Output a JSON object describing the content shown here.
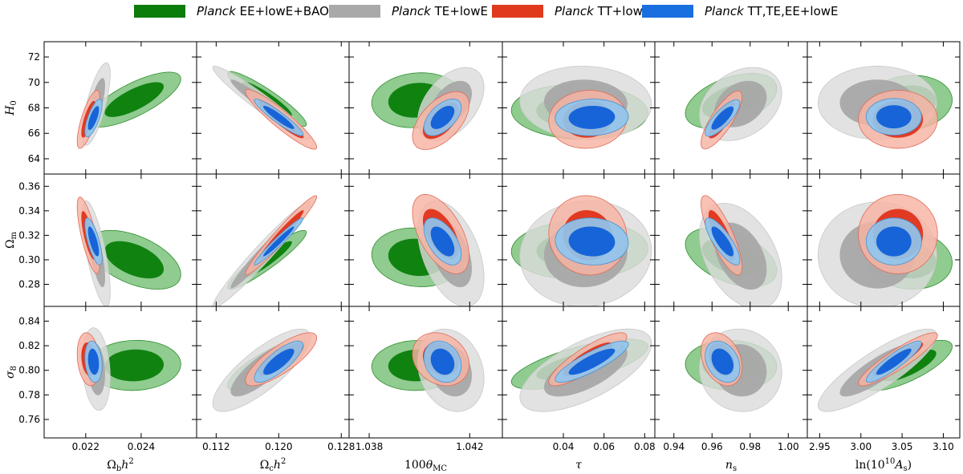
{
  "legend": [
    {
      "prefix": "Planck",
      "text": "EE+lowE+BAO",
      "color": "#0a7d0a"
    },
    {
      "prefix": "Planck",
      "text": "TE+lowE",
      "color": "#a9a9a9"
    },
    {
      "prefix": "Planck",
      "text": "TT+lowE",
      "color": "#e03a1e"
    },
    {
      "prefix": "Planck",
      "text": "TT,TE,EE+lowE",
      "color": "#1a6fe0"
    }
  ],
  "chart_data": {
    "type": "scatter",
    "title": "",
    "description_series": [
      "EE+lowE+BAO",
      "TE+lowE",
      "TT+lowE",
      "TT,TE,EE+lowE"
    ],
    "series_colors": {
      "ee": {
        "inner": "#0a7d0a",
        "outer": "#78bf78",
        "edge": "#2f8f2f"
      },
      "te": {
        "inner": "#a8a8a8",
        "outer": "#dcdcdc",
        "edge": "#c8c8c8"
      },
      "tt": {
        "inner": "#e0331a",
        "outer": "#f6b3a4",
        "edge": "#e06a55"
      },
      "all": {
        "inner": "#1664d8",
        "outer": "#8fc6ee",
        "edge": "#4a90d0"
      }
    },
    "columns": [
      {
        "label": "Ωbh²",
        "range": [
          0.0205,
          0.026
        ],
        "ticks": [
          "0.022",
          "0.024"
        ],
        "tick_values": [
          0.022,
          0.024
        ]
      },
      {
        "label": "Ωch²",
        "range": [
          0.1095,
          0.129
        ],
        "ticks": [
          "0.112",
          "0.120",
          "0.128"
        ],
        "tick_values": [
          0.112,
          0.12,
          0.128
        ]
      },
      {
        "label": "100θMC",
        "range": [
          1.0372,
          1.0433
        ],
        "ticks": [
          "1.038",
          "1.042"
        ],
        "tick_values": [
          1.038,
          1.042
        ]
      },
      {
        "label": "τ",
        "range": [
          0.01,
          0.085
        ],
        "ticks": [
          "0.04",
          "0.06",
          "0.08"
        ],
        "tick_values": [
          0.04,
          0.06,
          0.08
        ]
      },
      {
        "label": "ns",
        "range": [
          0.93,
          1.01
        ],
        "ticks": [
          "0.94",
          "0.96",
          "0.98",
          "1.00"
        ],
        "tick_values": [
          0.94,
          0.96,
          0.98,
          1.0
        ]
      },
      {
        "label": "ln(10¹⁰As)",
        "range": [
          2.935,
          3.12
        ],
        "ticks": [
          "2.95",
          "3.00",
          "3.05",
          "3.10"
        ],
        "tick_values": [
          2.95,
          3.0,
          3.05,
          3.1
        ]
      }
    ],
    "rows": [
      {
        "label": "H0",
        "range": [
          62.8,
          73.2
        ],
        "ticks": [
          "64",
          "66",
          "68",
          "70",
          "72"
        ],
        "tick_values": [
          64,
          66,
          68,
          70,
          72
        ]
      },
      {
        "label": "Ωm",
        "range": [
          0.262,
          0.37
        ],
        "ticks": [
          "0.28",
          "0.30",
          "0.32",
          "0.34",
          "0.36"
        ],
        "tick_values": [
          0.28,
          0.3,
          0.32,
          0.34,
          0.36
        ]
      },
      {
        "label": "σ8",
        "range": [
          0.745,
          0.852
        ],
        "ticks": [
          "0.76",
          "0.78",
          "0.80",
          "0.82",
          "0.84"
        ],
        "tick_values": [
          0.76,
          0.78,
          0.8,
          0.82,
          0.84
        ]
      }
    ],
    "contours": [
      [
        {
          "ee": {
            "center": [
              0.02375,
              68.65
            ],
            "sd": [
              0.0007,
              0.9
            ],
            "rho": 0.75
          },
          "te": {
            "center": [
              0.02238,
              68.3
            ],
            "sd": [
              0.00021,
              1.35
            ],
            "rho": 0.72
          },
          "tt": {
            "center": [
              0.0221,
              67.1
            ],
            "sd": [
              0.00017,
              0.95
            ],
            "rho": 0.75
          },
          "all": {
            "center": [
              0.02228,
              67.2
            ],
            "sd": [
              0.00013,
              0.62
            ],
            "rho": 0.72
          }
        },
        {
          "ee": {
            "center": [
              0.1185,
              68.7
            ],
            "sd": [
              0.0021,
              0.9
            ],
            "rho": -0.92
          },
          "te": {
            "center": [
              0.1178,
              68.4
            ],
            "sd": [
              0.0026,
              1.2
            ],
            "rho": -0.96
          },
          "tt": {
            "center": [
              0.1203,
              67.1
            ],
            "sd": [
              0.0019,
              0.98
            ],
            "rho": -0.93
          },
          "all": {
            "center": [
              0.12,
              67.25
            ],
            "sd": [
              0.0013,
              0.6
            ],
            "rho": -0.93
          }
        },
        {
          "ee": {
            "center": [
              1.0399,
              68.6
            ],
            "sd": [
              0.00075,
              0.9
            ],
            "rho": 0.1
          },
          "te": {
            "center": [
              1.04125,
              68.3
            ],
            "sd": [
              0.00055,
              1.2
            ],
            "rho": 0.45
          },
          "tt": {
            "center": [
              1.04085,
              67.0
            ],
            "sd": [
              0.00047,
              0.95
            ],
            "rho": 0.55
          },
          "all": {
            "center": [
              1.04092,
              67.25
            ],
            "sd": [
              0.00031,
              0.6
            ],
            "rho": 0.55
          }
        },
        {
          "ee": {
            "center": [
              0.048,
              67.7
            ],
            "sd": [
              0.014,
              0.9
            ],
            "rho": -0.05
          },
          "te": {
            "center": [
              0.051,
              68.4
            ],
            "sd": [
              0.0135,
              1.2
            ],
            "rho": -0.05
          },
          "tt": {
            "center": [
              0.052,
              67.1
            ],
            "sd": [
              0.008,
              0.95
            ],
            "rho": 0.05
          },
          "all": {
            "center": [
              0.054,
              67.25
            ],
            "sd": [
              0.0075,
              0.6
            ],
            "rho": 0.05
          }
        },
        {
          "ee": {
            "center": [
              0.97,
              68.55
            ],
            "sd": [
              0.01,
              0.9
            ],
            "rho": 0.45
          },
          "te": {
            "center": [
              0.975,
              68.3
            ],
            "sd": [
              0.009,
              1.2
            ],
            "rho": 0.3
          },
          "tt": {
            "center": [
              0.965,
              67.05
            ],
            "sd": [
              0.0045,
              0.95
            ],
            "rho": 0.8
          },
          "all": {
            "center": [
              0.9655,
              67.2
            ],
            "sd": [
              0.0038,
              0.6
            ],
            "rho": 0.8
          }
        },
        {
          "ee": {
            "center": [
              3.058,
              68.4
            ],
            "sd": [
              0.022,
              0.9
            ],
            "rho": 0.1
          },
          "te": {
            "center": [
              3.02,
              68.4
            ],
            "sd": [
              0.03,
              1.2
            ],
            "rho": 0.0
          },
          "tt": {
            "center": [
              3.045,
              67.1
            ],
            "sd": [
              0.02,
              0.95
            ],
            "rho": 0.0
          },
          "all": {
            "center": [
              3.04,
              67.3
            ],
            "sd": [
              0.014,
              0.6
            ],
            "rho": 0.0
          }
        }
      ],
      [
        {
          "ee": {
            "center": [
              0.02375,
              0.3
            ],
            "sd": [
              0.0007,
              0.01
            ],
            "rho": -0.5
          },
          "te": {
            "center": [
              0.02238,
              0.305
            ],
            "sd": [
              0.00021,
              0.018
            ],
            "rho": -0.72
          },
          "tt": {
            "center": [
              0.0221,
              0.32
            ],
            "sd": [
              0.00017,
              0.013
            ],
            "rho": -0.75
          },
          "all": {
            "center": [
              0.02228,
              0.315
            ],
            "sd": [
              0.00013,
              0.008
            ],
            "rho": -0.72
          }
        },
        {
          "ee": {
            "center": [
              0.1185,
              0.3
            ],
            "sd": [
              0.0021,
              0.01
            ],
            "rho": 0.93
          },
          "te": {
            "center": [
              0.1178,
              0.304
            ],
            "sd": [
              0.0026,
              0.018
            ],
            "rho": 0.97
          },
          "tt": {
            "center": [
              0.1203,
              0.32
            ],
            "sd": [
              0.0019,
              0.0135
            ],
            "rho": 0.97
          },
          "all": {
            "center": [
              0.12,
              0.315
            ],
            "sd": [
              0.0013,
              0.008
            ],
            "rho": 0.97
          }
        },
        {
          "ee": {
            "center": [
              1.0399,
              0.302
            ],
            "sd": [
              0.00075,
              0.01
            ],
            "rho": -0.1
          },
          "te": {
            "center": [
              1.04125,
              0.305
            ],
            "sd": [
              0.00055,
              0.018
            ],
            "rho": -0.45
          },
          "tt": {
            "center": [
              1.04085,
              0.321
            ],
            "sd": [
              0.00047,
              0.0135
            ],
            "rho": -0.55
          },
          "all": {
            "center": [
              1.04092,
              0.315
            ],
            "sd": [
              0.00031,
              0.008
            ],
            "rho": -0.55
          }
        },
        {
          "ee": {
            "center": [
              0.048,
              0.308
            ],
            "sd": [
              0.014,
              0.01
            ],
            "rho": 0.05
          },
          "te": {
            "center": [
              0.051,
              0.305
            ],
            "sd": [
              0.0135,
              0.018
            ],
            "rho": 0.05
          },
          "tt": {
            "center": [
              0.052,
              0.32
            ],
            "sd": [
              0.008,
              0.0135
            ],
            "rho": -0.05
          },
          "all": {
            "center": [
              0.054,
              0.315
            ],
            "sd": [
              0.0075,
              0.008
            ],
            "rho": -0.05
          }
        },
        {
          "ee": {
            "center": [
              0.97,
              0.302
            ],
            "sd": [
              0.01,
              0.01
            ],
            "rho": -0.45
          },
          "te": {
            "center": [
              0.975,
              0.303
            ],
            "sd": [
              0.009,
              0.018
            ],
            "rho": -0.4
          },
          "tt": {
            "center": [
              0.965,
              0.32
            ],
            "sd": [
              0.0045,
              0.0135
            ],
            "rho": -0.8
          },
          "all": {
            "center": [
              0.9655,
              0.315
            ],
            "sd": [
              0.0038,
              0.008
            ],
            "rho": -0.8
          }
        },
        {
          "ee": {
            "center": [
              3.058,
              0.3
            ],
            "sd": [
              0.022,
              0.01
            ],
            "rho": -0.1
          },
          "te": {
            "center": [
              3.02,
              0.304
            ],
            "sd": [
              0.03,
              0.018
            ],
            "rho": 0.0
          },
          "tt": {
            "center": [
              3.045,
              0.321
            ],
            "sd": [
              0.02,
              0.0135
            ],
            "rho": 0.0
          },
          "all": {
            "center": [
              3.04,
              0.315
            ],
            "sd": [
              0.014,
              0.008
            ],
            "rho": 0.0
          }
        }
      ],
      [
        {
          "ee": {
            "center": [
              0.02375,
              0.804
            ],
            "sd": [
              0.0007,
              0.0085
            ],
            "rho": 0.05
          },
          "te": {
            "center": [
              0.02238,
              0.801
            ],
            "sd": [
              0.00021,
              0.014
            ],
            "rho": -0.2
          },
          "tt": {
            "center": [
              0.0221,
              0.809
            ],
            "sd": [
              0.00017,
              0.009
            ],
            "rho": -0.2
          },
          "all": {
            "center": [
              0.02228,
              0.807
            ],
            "sd": [
              0.00013,
              0.007
            ],
            "rho": -0.2
          }
        },
        {
          "ee": {
            "center": [
              0.1185,
              0.804
            ],
            "sd": [
              0.0021,
              0.0085
            ],
            "rho": 0.8
          },
          "te": {
            "center": [
              0.1178,
              0.8
            ],
            "sd": [
              0.0026,
              0.014
            ],
            "rho": 0.8
          },
          "tt": {
            "center": [
              0.1203,
              0.809
            ],
            "sd": [
              0.0019,
              0.009
            ],
            "rho": 0.8
          },
          "all": {
            "center": [
              0.12,
              0.807
            ],
            "sd": [
              0.0013,
              0.007
            ],
            "rho": 0.8
          }
        },
        {
          "ee": {
            "center": [
              1.0399,
              0.804
            ],
            "sd": [
              0.00075,
              0.0085
            ],
            "rho": 0.05
          },
          "te": {
            "center": [
              1.04125,
              0.8
            ],
            "sd": [
              0.00055,
              0.014
            ],
            "rho": -0.2
          },
          "tt": {
            "center": [
              1.04085,
              0.809
            ],
            "sd": [
              0.00047,
              0.009
            ],
            "rho": -0.2
          },
          "all": {
            "center": [
              1.04092,
              0.807
            ],
            "sd": [
              0.00031,
              0.007
            ],
            "rho": -0.2
          }
        },
        {
          "ee": {
            "center": [
              0.048,
              0.805
            ],
            "sd": [
              0.014,
              0.0085
            ],
            "rho": 0.7
          },
          "te": {
            "center": [
              0.051,
              0.8
            ],
            "sd": [
              0.0135,
              0.014
            ],
            "rho": 0.65
          },
          "tt": {
            "center": [
              0.052,
              0.809
            ],
            "sd": [
              0.008,
              0.009
            ],
            "rho": 0.85
          },
          "all": {
            "center": [
              0.054,
              0.807
            ],
            "sd": [
              0.0075,
              0.007
            ],
            "rho": 0.85
          }
        },
        {
          "ee": {
            "center": [
              0.97,
              0.804
            ],
            "sd": [
              0.01,
              0.0085
            ],
            "rho": -0.05
          },
          "te": {
            "center": [
              0.975,
              0.8
            ],
            "sd": [
              0.009,
              0.014
            ],
            "rho": -0.05
          },
          "tt": {
            "center": [
              0.965,
              0.809
            ],
            "sd": [
              0.0045,
              0.009
            ],
            "rho": -0.3
          },
          "all": {
            "center": [
              0.9655,
              0.807
            ],
            "sd": [
              0.0038,
              0.007
            ],
            "rho": -0.3
          }
        },
        {
          "ee": {
            "center": [
              3.058,
              0.804
            ],
            "sd": [
              0.022,
              0.0085
            ],
            "rho": 0.75
          },
          "te": {
            "center": [
              3.02,
              0.8
            ],
            "sd": [
              0.03,
              0.014
            ],
            "rho": 0.85
          },
          "tt": {
            "center": [
              3.045,
              0.809
            ],
            "sd": [
              0.02,
              0.009
            ],
            "rho": 0.9
          },
          "all": {
            "center": [
              3.04,
              0.807
            ],
            "sd": [
              0.014,
              0.007
            ],
            "rho": 0.9
          }
        }
      ]
    ]
  }
}
